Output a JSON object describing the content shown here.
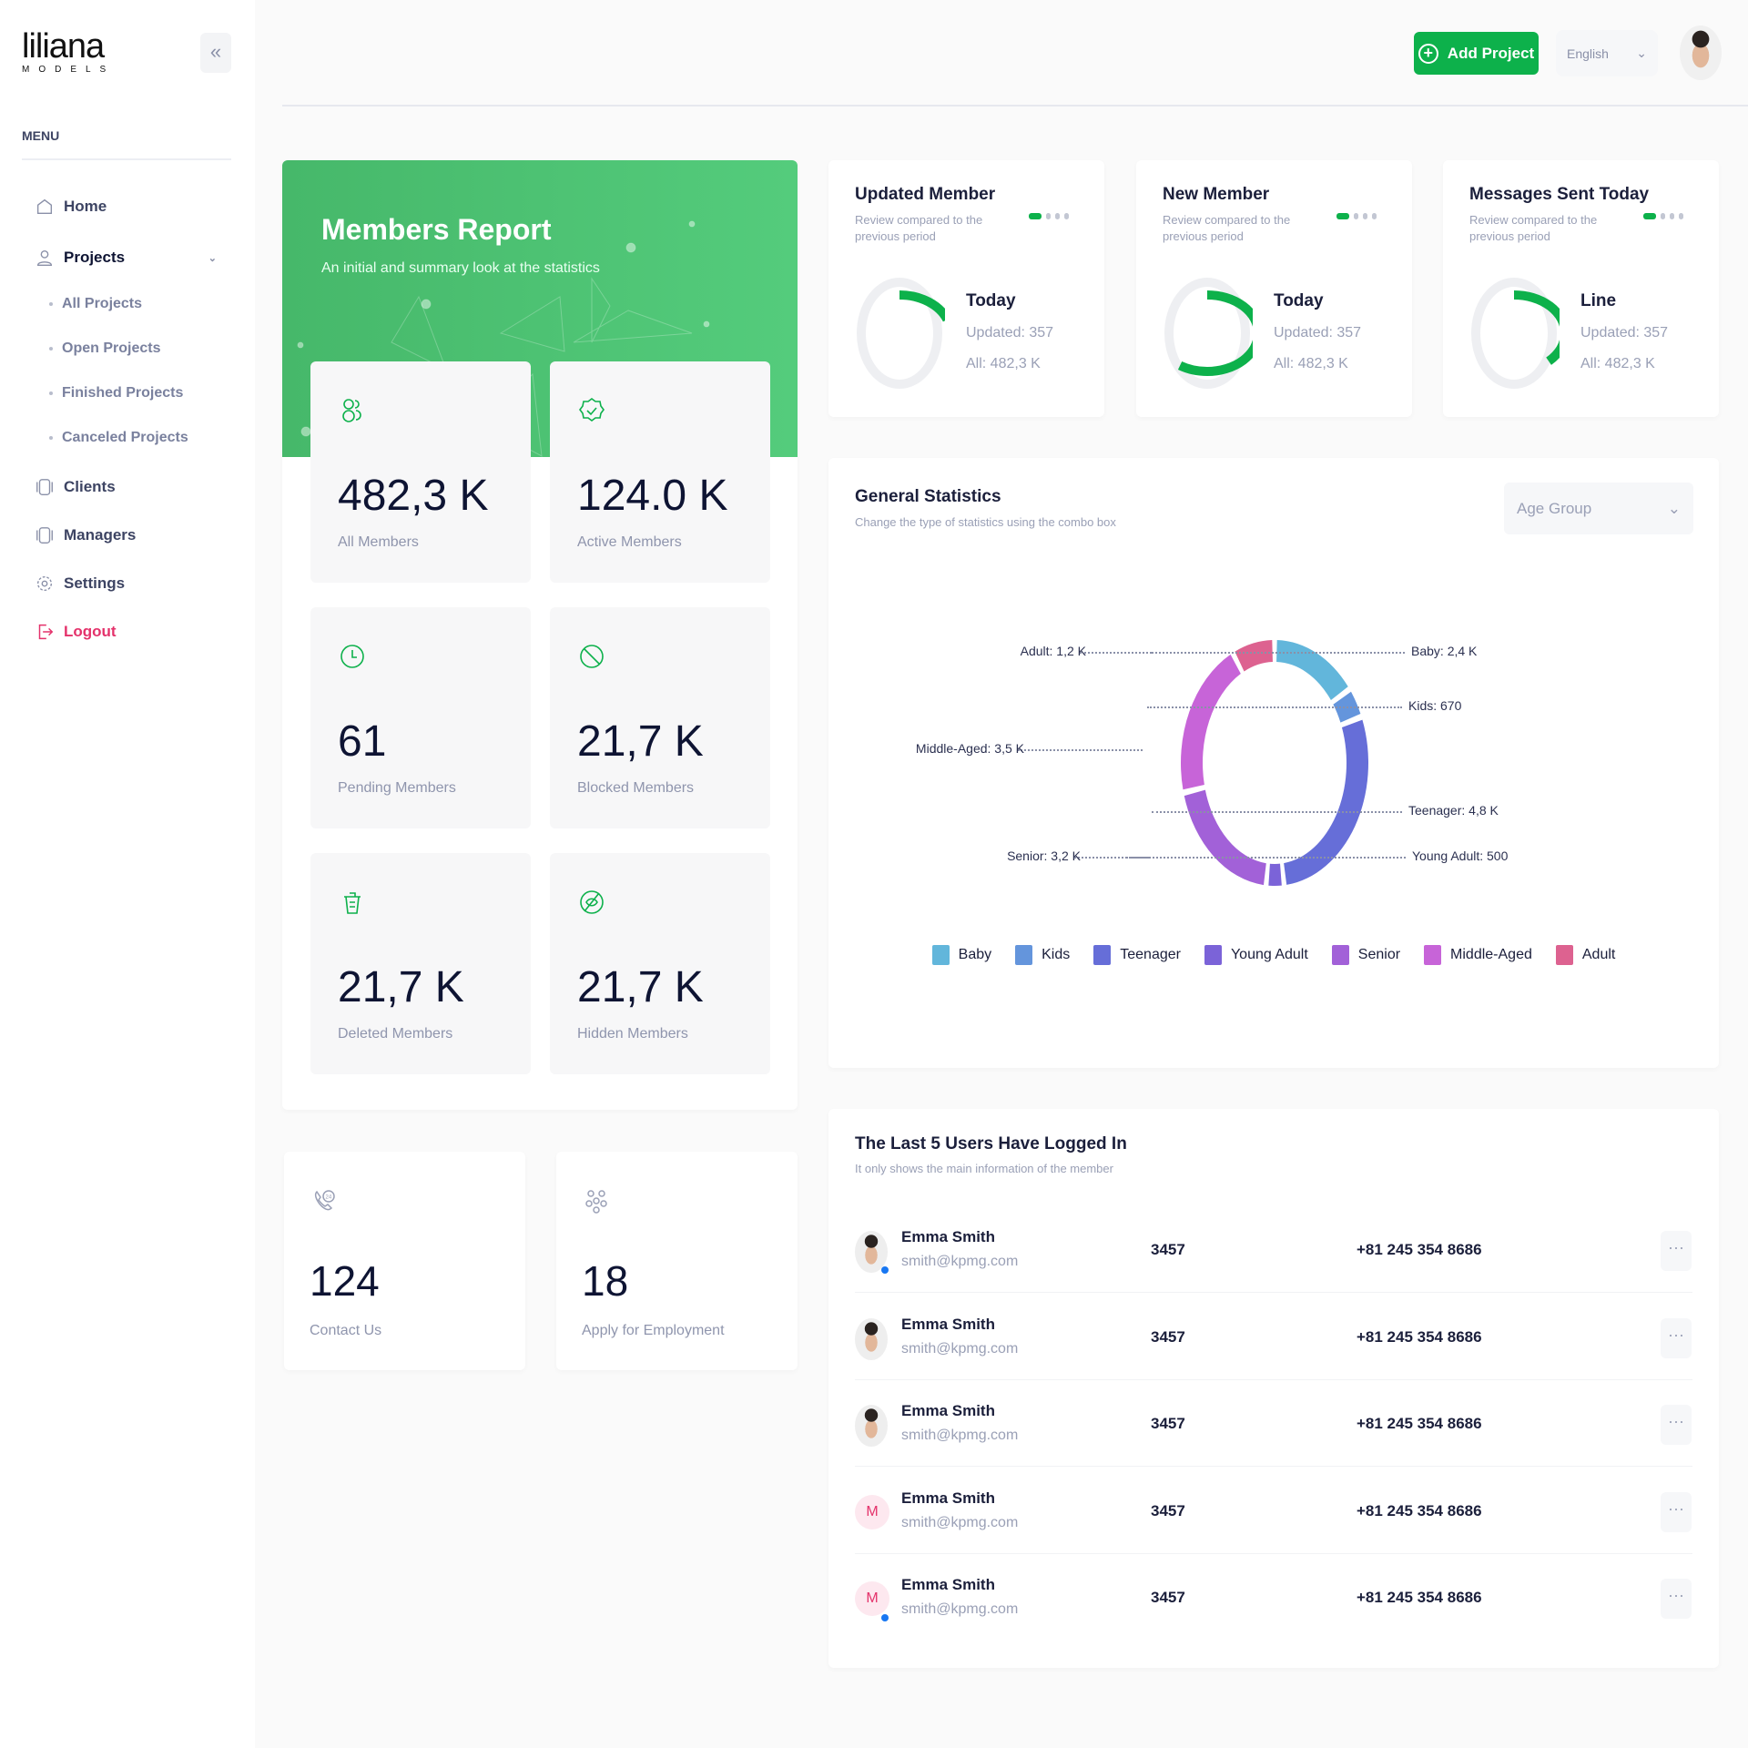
{
  "brand": {
    "name": "liliana",
    "sub": "MODELS"
  },
  "sidebar": {
    "menu_label": "MENU",
    "items": [
      {
        "label": "Home",
        "icon": "home-icon"
      },
      {
        "label": "Projects",
        "icon": "user-icon",
        "expanded": true,
        "children": [
          "All Projects",
          "Open Projects",
          "Finished Projects",
          "Canceled Projects"
        ]
      },
      {
        "label": "Clients",
        "icon": "clients-icon"
      },
      {
        "label": "Managers",
        "icon": "managers-icon"
      },
      {
        "label": "Settings",
        "icon": "gear-icon"
      },
      {
        "label": "Logout",
        "icon": "logout-icon",
        "color": "#e4326b"
      }
    ]
  },
  "header": {
    "add_project": "Add Project",
    "language": "English"
  },
  "colors": {
    "accent": "#0db14b",
    "logout": "#e4326b"
  },
  "report": {
    "title": "Members Report",
    "subtitle": "An initial and summary look at the statistics",
    "tiles": [
      {
        "value": "482,3 K",
        "label": "All Members",
        "icon": "users-icon"
      },
      {
        "value": "124.0 K",
        "label": "Active Members",
        "icon": "verified-badge-icon"
      },
      {
        "value": "61",
        "label": "Pending Members",
        "icon": "clock-icon"
      },
      {
        "value": "21,7 K",
        "label": "Blocked Members",
        "icon": "blocked-icon"
      },
      {
        "value": "21,7 K",
        "label": "Deleted Members",
        "icon": "trash-icon"
      },
      {
        "value": "21,7 K",
        "label": "Hidden Members",
        "icon": "eye-off-icon"
      }
    ]
  },
  "contact": [
    {
      "value": "124",
      "label": "Contact Us",
      "icon": "phone-24-icon"
    },
    {
      "value": "18",
      "label": "Apply for Employment",
      "icon": "people-group-icon"
    }
  ],
  "summary_cards": [
    {
      "title": "Updated Member",
      "desc": "Review compared to the previous period",
      "key": "Today",
      "updated": "Updated: 357",
      "all": "All: 482,3 K",
      "progress": 0.2
    },
    {
      "title": "New Member",
      "desc": "Review compared to the previous period",
      "key": "Today",
      "updated": "Updated: 357",
      "all": "All: 482,3 K",
      "progress": 0.6
    },
    {
      "title": "Messages Sent Today",
      "desc": "Review compared to the previous period",
      "key": "Line",
      "updated": "Updated: 357",
      "all": "All: 482,3 K",
      "progress": 0.37
    }
  ],
  "general": {
    "title": "General Statistics",
    "desc": "Change the type of statistics using the combo box",
    "select": "Age Group"
  },
  "chart_data": {
    "type": "pie",
    "donut": true,
    "categories": [
      "Baby",
      "Kids",
      "Teenager",
      "Young Adult",
      "Senior",
      "Middle-Aged",
      "Adult"
    ],
    "values": [
      2400,
      670,
      4800,
      500,
      3200,
      3500,
      1200
    ],
    "labels": [
      "Baby: 2,4 K",
      "Kids: 670",
      "Teenager: 4,8 K",
      "Young Adult: 500",
      "Senior: 3,2 K",
      "Middle-Aged: 3,5 K",
      "Adult: 1,2 K"
    ],
    "colors": [
      "#62b6db",
      "#6495dc",
      "#666ed8",
      "#7b63d8",
      "#a261d8",
      "#c764d8",
      "#dd6290"
    ],
    "legend": "bottom"
  },
  "users": {
    "title": "The Last 5 Users Have Logged In",
    "desc": "It only shows the main information of the member",
    "rows": [
      {
        "name": "Emma Smith",
        "email": "smith@kpmg.com",
        "id": "3457",
        "phone": "+81 245 354 8686",
        "avatar": "photo",
        "online": true
      },
      {
        "name": "Emma Smith",
        "email": "smith@kpmg.com",
        "id": "3457",
        "phone": "+81 245 354 8686",
        "avatar": "photo",
        "online": false
      },
      {
        "name": "Emma Smith",
        "email": "smith@kpmg.com",
        "id": "3457",
        "phone": "+81 245 354 8686",
        "avatar": "photo",
        "online": false
      },
      {
        "name": "Emma Smith",
        "email": "smith@kpmg.com",
        "id": "3457",
        "phone": "+81 245 354 8686",
        "avatar": "M",
        "online": false
      },
      {
        "name": "Emma Smith",
        "email": "smith@kpmg.com",
        "id": "3457",
        "phone": "+81 245 354 8686",
        "avatar": "M",
        "online": true
      }
    ],
    "more": "···"
  }
}
